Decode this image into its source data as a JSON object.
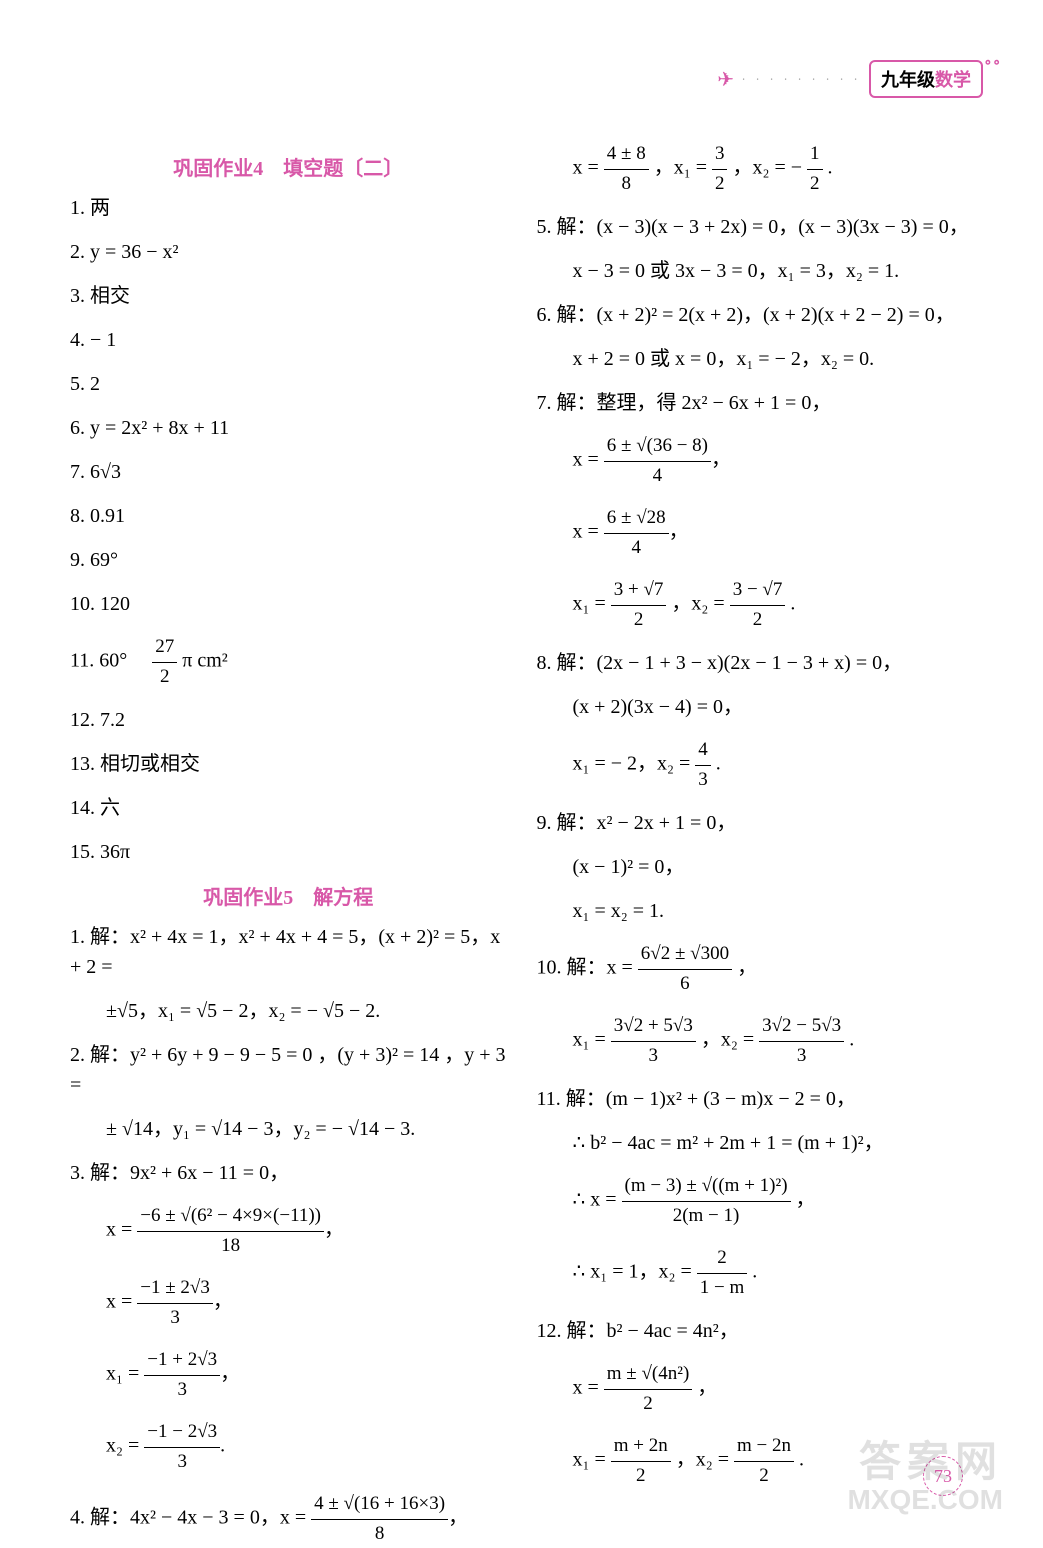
{
  "header": {
    "grade": "九年级",
    "subject": "数学"
  },
  "sections": {
    "s4_title": "巩固作业4　填空题〔二〕",
    "s5_title": "巩固作业5　解方程"
  },
  "left": {
    "l1": "1. 两",
    "l2": "2. y = 36 − x²",
    "l3": "3. 相交",
    "l4": "4. − 1",
    "l5": "5. 2",
    "l6": "6. y = 2x² + 8x + 11",
    "l7": "7. 6√3",
    "l8": "8. 0.91",
    "l9": "9. 69°",
    "l10": "10. 120",
    "l11a": "11. 60°　",
    "l11_num": "27",
    "l11_den": "2",
    "l11b": "π cm²",
    "l12": "12. 7.2",
    "l13": "13. 相切或相交",
    "l14": "14. 六",
    "l15": "15. 36π",
    "p1a": "1. 解：x² + 4x = 1，x² + 4x + 4 = 5，(x + 2)² = 5，x + 2 =",
    "p1b": "±√5，x₁ = √5 − 2，x₂ = − √5 − 2.",
    "p2a": "2. 解：y² + 6y + 9 − 9 − 5 = 0 ，(y + 3)² = 14 ，y + 3 =",
    "p2b": "± √14，y₁ = √14 − 3，y₂ = − √14 − 3.",
    "p3a": "3. 解：9x² + 6x − 11 = 0，",
    "p3b_pre": "x = ",
    "p3b_num": "−6 ± √(6² − 4×9×(−11))",
    "p3b_den": "18",
    "p3c_pre": "x = ",
    "p3c_num": "−1 ± 2√3",
    "p3c_den": "3",
    "p3d_pre": "x₁ = ",
    "p3d_num": "−1 + 2√3",
    "p3d_den": "3",
    "p3e_pre": "x₂ = ",
    "p3e_num": "−1 − 2√3",
    "p3e_den": "3",
    "p4a": "4. 解：4x² − 4x − 3 = 0，x = ",
    "p4_num": "4 ± √(16 + 16×3)",
    "p4_den": "8"
  },
  "right": {
    "r0_pre": "x = ",
    "r0a_num": "4 ± 8",
    "r0a_den": "8",
    "r0_mid": "，x₁ = ",
    "r0b_num": "3",
    "r0b_den": "2",
    "r0_mid2": "，x₂ = − ",
    "r0c_num": "1",
    "r0c_den": "2",
    "r0_end": ".",
    "r5a": "5. 解：(x − 3)(x − 3 + 2x) = 0，(x − 3)(3x − 3) = 0，",
    "r5b": "x − 3 = 0 或 3x − 3 = 0，x₁ = 3，x₂ = 1.",
    "r6a": "6. 解：(x + 2)² = 2(x + 2)，(x + 2)(x + 2 − 2) = 0，",
    "r6b": "x + 2 = 0 或 x = 0，x₁ = − 2，x₂ = 0.",
    "r7a": "7. 解：整理，得 2x² − 6x + 1 = 0，",
    "r7b_pre": "x = ",
    "r7b_num": "6 ± √(36 − 8)",
    "r7b_den": "4",
    "r7c_pre": "x = ",
    "r7c_num": "6 ± √28",
    "r7c_den": "4",
    "r7d_pre": "x₁ = ",
    "r7d1_num": "3 + √7",
    "r7d1_den": "2",
    "r7d_mid": "，x₂ = ",
    "r7d2_num": "3 − √7",
    "r7d2_den": "2",
    "r7d_end": ".",
    "r8a": "8. 解：(2x − 1 + 3 − x)(2x − 1 − 3 + x) = 0，",
    "r8b": "(x + 2)(3x − 4) = 0，",
    "r8c_pre": "x₁ = − 2，x₂ = ",
    "r8c_num": "4",
    "r8c_den": "3",
    "r8c_end": ".",
    "r9a": "9. 解：x² − 2x + 1 = 0，",
    "r9b": "(x − 1)² = 0，",
    "r9c": "x₁ = x₂ = 1.",
    "r10a_pre": "10. 解：x = ",
    "r10a_num": "6√2 ± √300",
    "r10a_den": "6",
    "r10a_end": "，",
    "r10b_pre": "x₁ = ",
    "r10b1_num": "3√2 + 5√3",
    "r10b1_den": "3",
    "r10b_mid": "，x₂ = ",
    "r10b2_num": "3√2 − 5√3",
    "r10b2_den": "3",
    "r10b_end": ".",
    "r11a": "11. 解：(m − 1)x² + (3 − m)x − 2 = 0，",
    "r11b": "∴ b² − 4ac = m² + 2m + 1 = (m + 1)²，",
    "r11c_pre": "∴ x = ",
    "r11c_num": "(m − 3) ± √((m + 1)²)",
    "r11c_den": "2(m − 1)",
    "r11c_end": "，",
    "r11d_pre": "∴ x₁ = 1，x₂ = ",
    "r11d_num": "2",
    "r11d_den": "1 − m",
    "r11d_end": ".",
    "r12a": "12. 解：b² − 4ac = 4n²，",
    "r12b_pre": "x = ",
    "r12b_num": "m ± √(4n²)",
    "r12b_den": "2",
    "r12b_end": "，",
    "r12c_pre": "x₁ = ",
    "r12c1_num": "m + 2n",
    "r12c1_den": "2",
    "r12c_mid": "，x₂ = ",
    "r12c2_num": "m − 2n",
    "r12c2_den": "2",
    "r12c_end": "."
  },
  "page_number": "73",
  "watermark_cn": "答案网",
  "watermark_en": "MXQE.COM",
  "colors": {
    "accent": "#d858a8",
    "text": "#000000",
    "bg": "#ffffff"
  }
}
